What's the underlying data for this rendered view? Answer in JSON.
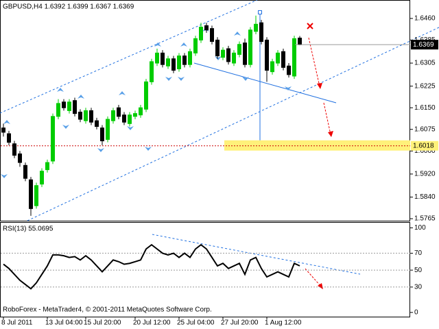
{
  "chart_data": {
    "type": "candlestick",
    "title": "GBPUSD,H4 1.6392 1.6399 1.6367 1.6369",
    "footer": "RoboForex - MetaTrader4, © 2001-2011 MetaQuotes Software Corp.",
    "up_color": "#00cc00",
    "down_color": "#000000",
    "categories": [
      "8 Jul 2011",
      null,
      null,
      null,
      null,
      null,
      null,
      null,
      "13 Jul 04:00",
      null,
      null,
      null,
      null,
      null,
      null,
      "15 Jul 20:00",
      null,
      null,
      null,
      null,
      null,
      null,
      null,
      null,
      "20 Jul 12:00",
      null,
      null,
      null,
      null,
      null,
      null,
      null,
      "25 Jul 04:00",
      null,
      null,
      null,
      null,
      null,
      null,
      null,
      "27 Jul 20:00",
      null,
      null,
      null,
      null,
      null,
      null,
      null,
      "1 Aug 12:00",
      null,
      null,
      null,
      null,
      null,
      null
    ],
    "open": [
      1.608,
      1.606,
      1.6025,
      1.599,
      1.595,
      1.59,
      1.581,
      1.5885,
      1.5935,
      1.5965,
      1.612,
      1.617,
      1.614,
      1.6175,
      1.6135,
      1.6105,
      1.614,
      1.6105,
      1.608,
      1.604,
      1.6105,
      1.615,
      1.6125,
      1.6095,
      1.612,
      1.6125,
      1.6145,
      1.624,
      1.6305,
      1.634,
      1.6295,
      1.632,
      1.6285,
      1.633,
      1.63,
      1.634,
      1.6385,
      1.6435,
      1.6425,
      1.6385,
      1.6325,
      1.6355,
      1.6305,
      1.6335,
      1.6375,
      1.63,
      1.6415,
      1.6445,
      1.6385,
      1.6275,
      1.6305,
      1.6345,
      1.6295,
      1.626,
      1.6392
    ],
    "high": [
      1.6095,
      1.607,
      1.6035,
      1.6,
      1.596,
      1.591,
      1.589,
      1.594,
      1.597,
      1.613,
      1.618,
      1.618,
      1.618,
      1.6185,
      1.6145,
      1.615,
      1.615,
      1.6115,
      1.609,
      1.612,
      1.615,
      1.616,
      1.6135,
      1.6135,
      1.614,
      1.616,
      1.625,
      1.632,
      1.6355,
      1.635,
      1.633,
      1.633,
      1.634,
      1.634,
      1.6355,
      1.64,
      1.6445,
      1.6445,
      1.6435,
      1.6395,
      1.636,
      1.6365,
      1.635,
      1.638,
      1.639,
      1.643,
      1.647,
      1.6455,
      1.6395,
      1.632,
      1.635,
      1.6355,
      1.6305,
      1.64,
      1.6399
    ],
    "low": [
      1.605,
      1.602,
      1.5975,
      1.5945,
      1.5895,
      1.5775,
      1.58,
      1.5875,
      1.5925,
      1.5955,
      1.611,
      1.614,
      1.613,
      1.612,
      1.61,
      1.6095,
      1.609,
      1.6075,
      1.602,
      1.603,
      1.6095,
      1.611,
      1.609,
      1.6085,
      1.611,
      1.6115,
      1.6135,
      1.623,
      1.6295,
      1.629,
      1.6285,
      1.627,
      1.6275,
      1.629,
      1.629,
      1.633,
      1.6375,
      1.641,
      1.637,
      1.632,
      1.6315,
      1.63,
      1.6295,
      1.6325,
      1.629,
      1.629,
      1.6405,
      1.637,
      1.624,
      1.6265,
      1.6295,
      1.628,
      1.6255,
      1.625,
      1.6367
    ],
    "close": [
      1.6065,
      1.603,
      1.5985,
      1.596,
      1.5905,
      1.58,
      1.588,
      1.593,
      1.596,
      1.612,
      1.6165,
      1.615,
      1.617,
      1.613,
      1.611,
      1.614,
      1.61,
      1.6085,
      1.6035,
      1.611,
      1.614,
      1.612,
      1.61,
      1.6125,
      1.613,
      1.615,
      1.624,
      1.631,
      1.634,
      1.63,
      1.632,
      1.628,
      1.633,
      1.63,
      1.6345,
      1.639,
      1.643,
      1.642,
      1.638,
      1.633,
      1.635,
      1.631,
      1.634,
      1.637,
      1.63,
      1.642,
      1.644,
      1.638,
      1.628,
      1.631,
      1.634,
      1.629,
      1.6265,
      1.639,
      1.6369
    ],
    "ylim": [
      1.5758,
      1.6524
    ],
    "yticks": [
      {
        "value": 1.646,
        "label": "1.6460"
      },
      1.6385,
      1.6305,
      1.6225,
      {
        "value": 1.615,
        "label": "1.6150"
      },
      1.6075,
      {
        "value": 1.6,
        "label": "1.6000"
      },
      {
        "value": 1.592,
        "label": "1.5920"
      },
      {
        "value": 1.584,
        "label": "1.5840"
      },
      1.5765
    ],
    "current_price": 1.6369,
    "target_level": 1.6018,
    "rsi": {
      "label": "RSI(13) 55.0695",
      "color": "#000000",
      "values": [
        57,
        52,
        45,
        38,
        33,
        28,
        35,
        45,
        55,
        68,
        68,
        67,
        65,
        66,
        62,
        67,
        62,
        55,
        48,
        55,
        62,
        60,
        57,
        58,
        60,
        62,
        75,
        80,
        75,
        70,
        68,
        70,
        65,
        70,
        65,
        75,
        80,
        75,
        65,
        55,
        58,
        52,
        55,
        58,
        45,
        62,
        65,
        52,
        42,
        45,
        48,
        45,
        42,
        58,
        55.0695
      ],
      "ylim": [
        -5,
        106
      ],
      "yticks": [
        100,
        70,
        50,
        30,
        0
      ],
      "levels": [
        70,
        50,
        30
      ]
    }
  }
}
